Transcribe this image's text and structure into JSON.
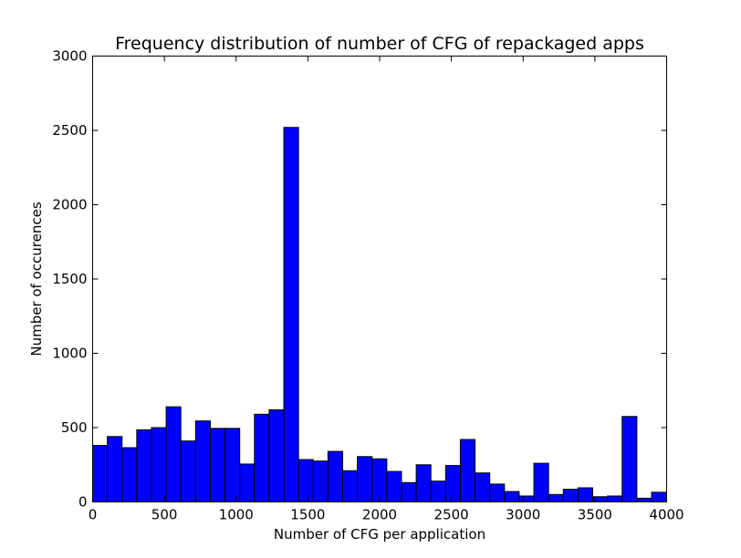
{
  "chart_data": {
    "type": "bar",
    "title": "Frequency distribution of number of CFG of repackaged apps",
    "xlabel": "Number of CFG per application",
    "ylabel": "Number of occurences",
    "xlim": [
      0,
      4000
    ],
    "ylim": [
      0,
      3000
    ],
    "xticks": [
      0,
      500,
      1000,
      1500,
      2000,
      2500,
      3000,
      3500,
      4000
    ],
    "yticks": [
      0,
      500,
      1000,
      1500,
      2000,
      2500,
      3000
    ],
    "grid": false,
    "legend": "none",
    "bar_color": "#0000ff",
    "bin_width": 102.5,
    "bin_start": 0,
    "values": [
      380,
      440,
      365,
      485,
      500,
      640,
      410,
      545,
      495,
      495,
      255,
      590,
      620,
      2520,
      285,
      275,
      340,
      210,
      305,
      290,
      205,
      130,
      250,
      140,
      245,
      420,
      195,
      120,
      70,
      40,
      260,
      50,
      85,
      95,
      35,
      40,
      575,
      25,
      65
    ]
  }
}
